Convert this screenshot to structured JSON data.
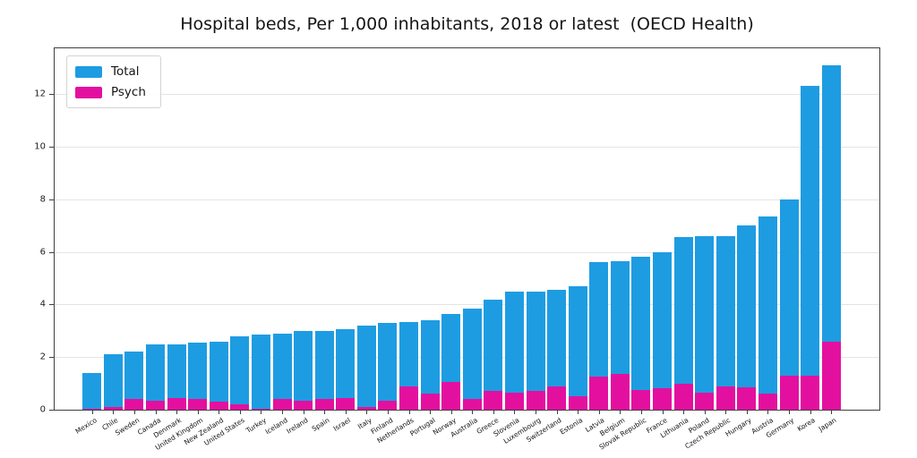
{
  "title": "Hospital beds, Per 1,000 inhabitants, 2018 or latest  (OECD Health)",
  "chart_data": {
    "type": "bar",
    "title": "Hospital beds, Per 1,000 inhabitants, 2018 or latest  (OECD Health)",
    "xlabel": "",
    "ylabel": "",
    "categories": [
      "Mexico",
      "Chile",
      "Sweden",
      "Canada",
      "Denmark",
      "United Kingdom",
      "New Zealand",
      "United States",
      "Turkey",
      "Iceland",
      "Ireland",
      "Spain",
      "Israel",
      "Italy",
      "Finland",
      "Netherlands",
      "Portugal",
      "Norway",
      "Australia",
      "Greece",
      "Slovenia",
      "Luxembourg",
      "Switzerland",
      "Estonia",
      "Latvia",
      "Belgium",
      "Slovak Republic",
      "France",
      "Lithuania",
      "Poland",
      "Czech Republic",
      "Hungary",
      "Austria",
      "Germany",
      "Korea",
      "Japan"
    ],
    "series": [
      {
        "name": "Total",
        "color": "#1e9ce2",
        "values": [
          1.4,
          2.1,
          2.2,
          2.5,
          2.5,
          2.55,
          2.6,
          2.8,
          2.85,
          2.9,
          3.0,
          3.0,
          3.05,
          3.2,
          3.3,
          3.35,
          3.4,
          3.65,
          3.85,
          4.2,
          4.5,
          4.5,
          4.55,
          4.7,
          5.6,
          5.65,
          5.8,
          6.0,
          6.55,
          6.6,
          6.6,
          7.0,
          7.35,
          8.0,
          12.3,
          13.1
        ]
      },
      {
        "name": "Psych",
        "color": "#e3109f",
        "values": [
          0.05,
          0.1,
          0.4,
          0.35,
          0.45,
          0.4,
          0.3,
          0.2,
          0.05,
          0.4,
          0.35,
          0.4,
          0.45,
          0.1,
          0.35,
          0.9,
          0.6,
          1.05,
          0.4,
          0.7,
          0.65,
          0.7,
          0.9,
          0.5,
          1.25,
          1.35,
          0.75,
          0.8,
          1.0,
          0.65,
          0.9,
          0.85,
          0.6,
          1.3,
          1.3,
          2.6
        ]
      }
    ],
    "bar_mode": "overlay",
    "ylim": [
      0,
      13.74
    ],
    "yticks": [
      0,
      2,
      4,
      6,
      8,
      10,
      12
    ],
    "grid": "horizontal",
    "legend_position": "upper-left",
    "x_label_rotation_deg": -32
  }
}
